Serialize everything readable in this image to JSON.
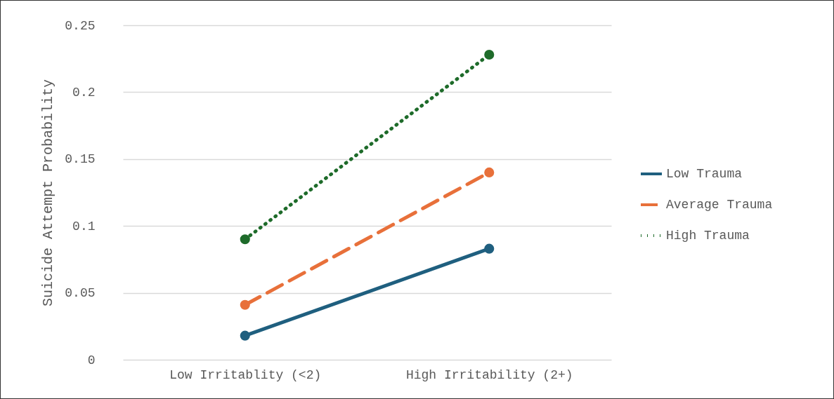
{
  "chart_data": {
    "type": "line",
    "ylabel": "Suicide Attempt Probability",
    "categories": [
      "Low Irritablity (<2)",
      "High Irritability (2+)"
    ],
    "series": [
      {
        "name": "Low Trauma",
        "color": "#1f5f7f",
        "values": [
          0.018,
          0.083
        ],
        "line_style": "solid"
      },
      {
        "name": "Average Trauma",
        "color": "#e8703a",
        "values": [
          0.041,
          0.14
        ],
        "line_style": "dashed"
      },
      {
        "name": "High Trauma",
        "color": "#1e6b2a",
        "values": [
          0.09,
          0.228
        ],
        "line_style": "dotted"
      }
    ],
    "ylim": [
      0,
      0.25
    ],
    "yticks": [
      0,
      0.05,
      0.1,
      0.15,
      0.2,
      0.25
    ],
    "grid": "y",
    "legend": "right",
    "marker": "circle"
  }
}
